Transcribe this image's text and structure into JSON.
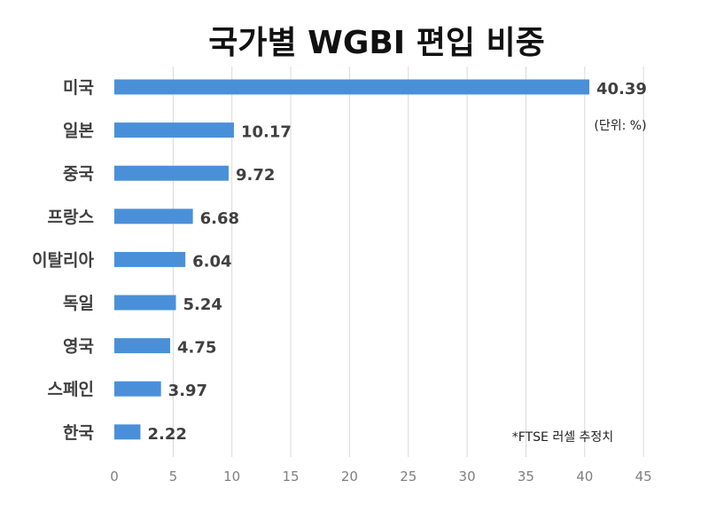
{
  "chart_data": {
    "type": "bar",
    "orientation": "horizontal",
    "title": "국가별 WGBI 편입 비중",
    "categories": [
      "미국",
      "일본",
      "중국",
      "프랑스",
      "이탈리아",
      "독일",
      "영국",
      "스페인",
      "한국"
    ],
    "values": [
      40.39,
      10.17,
      9.72,
      6.68,
      6.04,
      5.24,
      4.75,
      3.97,
      2.22
    ],
    "value_labels": [
      "40.39",
      "10.17",
      "9.72",
      "6.68",
      "6.04",
      "5.24",
      "4.75",
      "3.97",
      "2.22"
    ],
    "xlim": [
      0,
      45
    ],
    "xticks": [
      "0",
      "5",
      "10",
      "15",
      "20",
      "25",
      "30",
      "35",
      "40",
      "45"
    ],
    "xlabel": "",
    "ylabel": "",
    "grid": true,
    "bar_color": "#4a90d9",
    "unit_note": "(단위: %)",
    "source_note": "*FTSE 러셀 추정치"
  }
}
